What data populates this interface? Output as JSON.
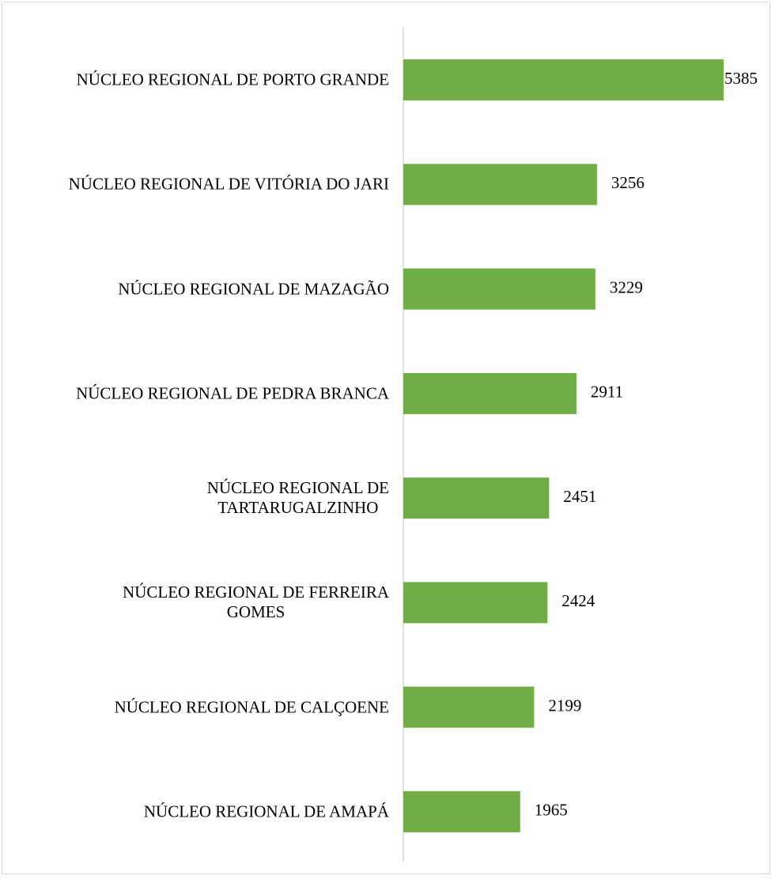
{
  "chart_data": {
    "type": "barh",
    "categories": [
      "NÚCLEO REGIONAL DE PORTO GRANDE",
      "NÚCLEO REGIONAL DE VITÓRIA DO JARI",
      "NÚCLEO REGIONAL DE MAZAGÃO",
      "NÚCLEO REGIONAL DE PEDRA BRANCA",
      "NÚCLEO REGIONAL DE\nTARTARUGALZINHO",
      "NÚCLEO REGIONAL DE FERREIRA\nGOMES",
      "NÚCLEO REGIONAL DE CALÇOENE",
      "NÚCLEO REGIONAL DE AMAPÁ"
    ],
    "values": [
      5385,
      3256,
      3229,
      2911,
      2451,
      2424,
      2199,
      1965
    ],
    "color": "#70ad47"
  }
}
